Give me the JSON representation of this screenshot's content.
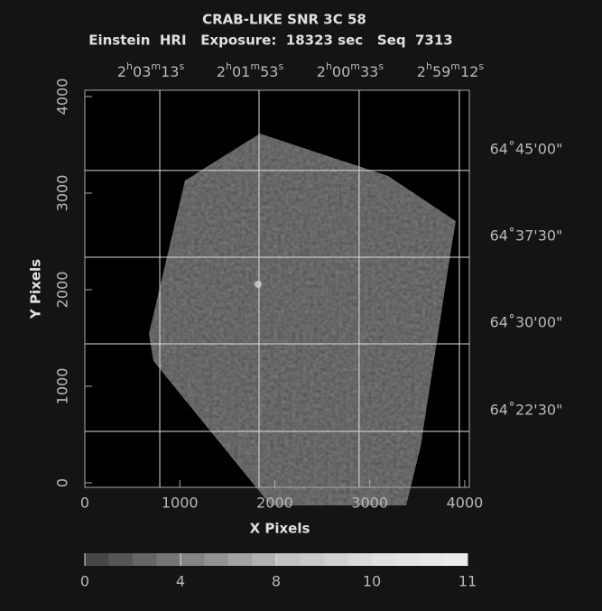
{
  "chart_data": {
    "type": "image",
    "title": "CRAB-LIKE SNR 3C 58",
    "subtitle": "Einstein  HRI   Exposure:  18323 sec   Seq  7313",
    "x_label": "X Pixels",
    "y_label": "Y Pixels",
    "xlim": [
      0,
      4048
    ],
    "ylim": [
      -47,
      4065
    ],
    "xticks": [
      0,
      1000,
      2000,
      3000,
      4000
    ],
    "yticks": [
      0,
      1000,
      2000,
      3000,
      4000
    ],
    "ra_grid": [
      {
        "value": 789,
        "label": [
          "2",
          "h",
          "03",
          "m",
          "13",
          "s"
        ]
      },
      {
        "value": 1834,
        "label": [
          "2",
          "h",
          "01",
          "m",
          "53",
          "s"
        ]
      },
      {
        "value": 2888,
        "label": [
          "2",
          "h",
          "00",
          "m",
          "33",
          "s"
        ]
      },
      {
        "value": 3943,
        "label": [
          "2",
          "h",
          "59",
          "m",
          "12",
          "s"
        ]
      }
    ],
    "dec_grid": [
      {
        "value": 3234,
        "label": "64˚45'00\""
      },
      {
        "value": 2336,
        "label": "64˚37'30\""
      },
      {
        "value": 1439,
        "label": "64˚30'00\""
      },
      {
        "value": 533,
        "label": "64˚22'30\""
      }
    ],
    "colorbar": {
      "levels": [
        0,
        1,
        2,
        3,
        4,
        5,
        6,
        7,
        8,
        8.5,
        9,
        9.5,
        10,
        10.25,
        10.5,
        10.75,
        11
      ],
      "ticks": [
        0,
        4,
        8,
        10,
        11
      ]
    }
  }
}
